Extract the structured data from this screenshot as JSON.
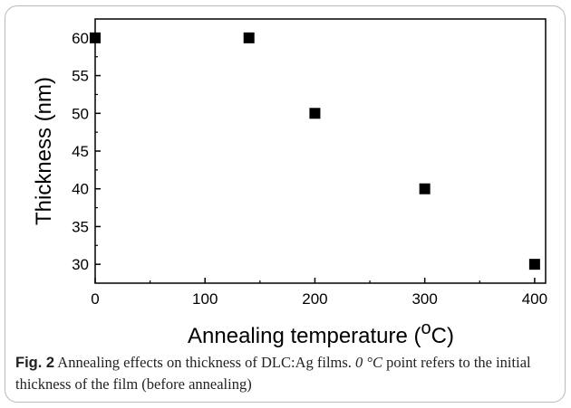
{
  "chart_data": {
    "type": "scatter",
    "x": [
      0,
      140,
      200,
      300,
      400
    ],
    "y": [
      60,
      60,
      50,
      40,
      30
    ],
    "xlabel": "Annealing temperature (",
    "xlabel_sup": "o",
    "xlabel_end": "C)",
    "ylabel": "Thickness (nm)",
    "xlim": [
      0,
      410
    ],
    "ylim": [
      27.5,
      62.5
    ],
    "xticks": [
      0,
      100,
      200,
      300,
      400
    ],
    "yticks": [
      30,
      35,
      40,
      45,
      50,
      55,
      60
    ],
    "marker": "square",
    "marker_color": "#000000",
    "grid": false
  },
  "caption": {
    "label": "Fig. 2",
    "text_1": " Annealing effects on thickness of DLC:Ag films. ",
    "italic": "0 °C",
    "text_2": " point refers to the initial thickness of the film (before annealing)"
  }
}
